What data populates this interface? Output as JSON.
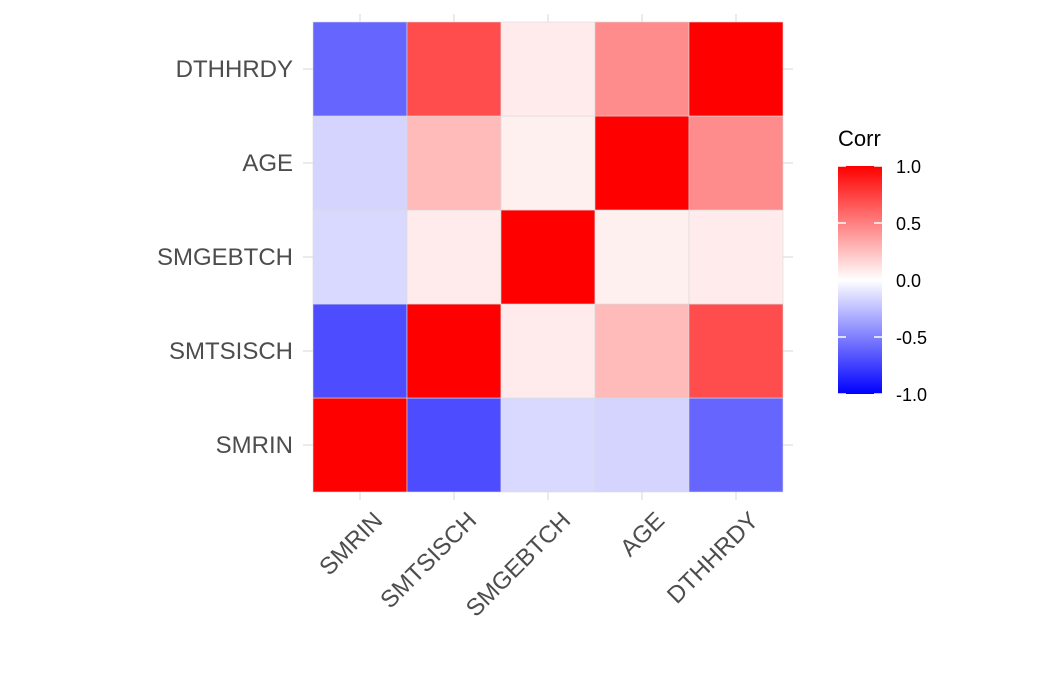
{
  "chart_data": {
    "type": "heatmap",
    "variables": [
      "SMRIN",
      "SMTSISCH",
      "SMGEBTCH",
      "AGE",
      "DTHHRDY"
    ],
    "matrix": [
      [
        1.0,
        -0.7,
        -0.15,
        -0.17,
        -0.6
      ],
      [
        -0.7,
        1.0,
        0.08,
        0.27,
        0.7
      ],
      [
        -0.15,
        0.08,
        1.0,
        0.06,
        0.08
      ],
      [
        -0.17,
        0.27,
        0.06,
        1.0,
        0.45
      ],
      [
        -0.6,
        0.7,
        0.08,
        0.45,
        1.0
      ]
    ],
    "legend": {
      "title": "Corr",
      "ticks": [
        "1.0",
        "0.5",
        "0.0",
        "-0.5",
        "-1.0"
      ],
      "range": [
        -1,
        1
      ],
      "colors": {
        "low": "#0000ff",
        "mid": "#ffffff",
        "high": "#ff0000"
      },
      "position": "right"
    },
    "grid": true
  }
}
